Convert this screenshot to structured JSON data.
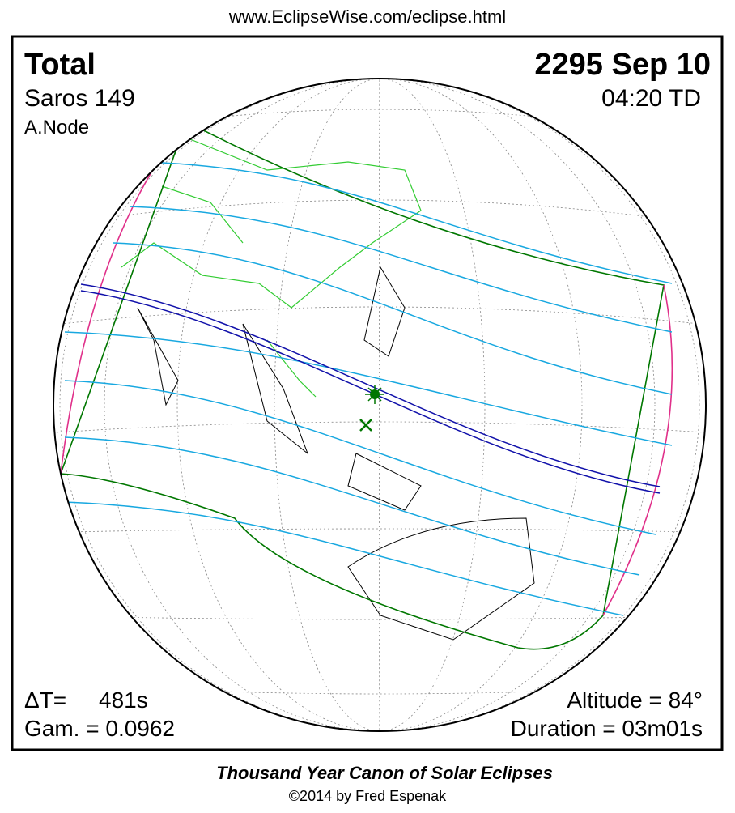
{
  "header": {
    "url": "www.EclipseWise.com/eclipse.html"
  },
  "panel": {
    "eclipse_type": "Total",
    "date": "2295 Sep 10",
    "saros": "Saros 149",
    "time": "04:20 TD",
    "node": "A.Node",
    "delta_t_label": "ΔT=",
    "delta_t_value": "481s",
    "gamma": "Gam. = 0.0962",
    "altitude": "Altitude = 84°",
    "duration": "Duration = 03m01s"
  },
  "footer": {
    "title": "Thousand Year Canon of Solar Eclipses",
    "copyright": "©2014 by Fred Espenak"
  }
}
